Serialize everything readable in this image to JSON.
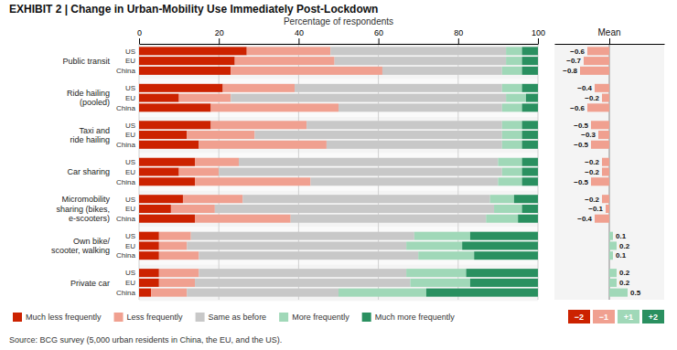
{
  "chart_data": [
    {
      "type": "bar",
      "orientation": "horizontal",
      "stacked": true,
      "title": "EXHIBIT 2 | Change in Urban-Mobility Use Immediately Post-Lockdown",
      "xlabel": "Percentage of respondents",
      "categories": [
        "Public transit",
        "Ride hailing\n(pooled)",
        "Taxi and\nride hailing",
        "Car sharing",
        "Micromobility\nsharing (bikes,\ne-scooters)",
        "Own bike/\nscooter, walking",
        "Private car"
      ],
      "subcategories": [
        "US",
        "EU",
        "China"
      ],
      "series": [
        {
          "name": "Much less frequently",
          "color": "#cc2200",
          "values": [
            [
              27,
              24,
              23
            ],
            [
              21,
              10,
              18
            ],
            [
              18,
              12,
              15
            ],
            [
              14,
              10,
              14
            ],
            [
              11,
              8,
              14
            ],
            [
              5,
              5,
              5
            ],
            [
              5,
              5,
              3
            ]
          ]
        },
        {
          "name": "Less frequently",
          "color": "#f0a090",
          "values": [
            [
              21,
              25,
              38
            ],
            [
              18,
              13,
              32
            ],
            [
              24,
              17,
              32
            ],
            [
              11,
              10,
              29
            ],
            [
              15,
              11,
              24
            ],
            [
              8,
              7,
              10
            ],
            [
              10,
              9,
              9
            ]
          ]
        },
        {
          "name": "Same as before",
          "color": "#c8c8c8",
          "values": [
            [
              44,
              43,
              30
            ],
            [
              52,
              69,
              41
            ],
            [
              49,
              62,
              44
            ],
            [
              65,
              71,
              47
            ],
            [
              62,
              70,
              49
            ],
            [
              56,
              55,
              55
            ],
            [
              52,
              54,
              38
            ]
          ]
        },
        {
          "name": "More frequently",
          "color": "#a0d8b8",
          "values": [
            [
              4,
              4,
              5
            ],
            [
              5,
              5,
              5
            ],
            [
              5,
              5,
              5
            ],
            [
              6,
              5,
              6
            ],
            [
              6,
              7,
              8
            ],
            [
              14,
              14,
              14
            ],
            [
              15,
              15,
              22
            ]
          ]
        },
        {
          "name": "Much more frequently",
          "color": "#2a9060",
          "values": [
            [
              4,
              4,
              4
            ],
            [
              4,
              3,
              4
            ],
            [
              4,
              4,
              4
            ],
            [
              4,
              4,
              4
            ],
            [
              6,
              4,
              5
            ],
            [
              17,
              19,
              16
            ],
            [
              18,
              17,
              28
            ]
          ]
        }
      ],
      "xlim": [
        0,
        100
      ],
      "xticks": [
        0,
        20,
        40,
        60,
        80,
        100
      ],
      "grid": true,
      "legend": "bottom",
      "annotations": [
        "Source: BCG survey (5,000 urban residents in China, the EU, and the US)."
      ]
    },
    {
      "type": "bar",
      "orientation": "horizontal",
      "title": "Mean",
      "values": [
        [
          -0.6,
          -0.7,
          -0.8
        ],
        [
          -0.4,
          -0.2,
          -0.6
        ],
        [
          -0.5,
          -0.3,
          -0.5
        ],
        [
          -0.2,
          -0.2,
          -0.5
        ],
        [
          -0.2,
          -0.1,
          -0.4
        ],
        [
          0.1,
          0.2,
          0.1
        ],
        [
          0.2,
          0.2,
          0.5
        ]
      ],
      "value_labels": [
        [
          "−0.6",
          "−0.7",
          "−0.8"
        ],
        [
          "−0.4",
          "−0.2",
          "−0.6"
        ],
        [
          "−0.5",
          "−0.3",
          "−0.5"
        ],
        [
          "−0.2",
          "−0.2",
          "−0.5"
        ],
        [
          "−0.2",
          "−0.1",
          "−0.4"
        ],
        [
          "0.1",
          "0.2",
          "0.1"
        ],
        [
          "0.2",
          "0.2",
          "0.5"
        ]
      ],
      "colors": [
        [
          "#f0a090",
          "#f0a090",
          "#f0a090"
        ],
        [
          "#f0a090",
          "#f0a090",
          "#f0a090"
        ],
        [
          "#f0a090",
          "#f0a090",
          "#f0a090"
        ],
        [
          "#f0a090",
          "#f0a090",
          "#f0a090"
        ],
        [
          "#f0a090",
          "#f0a090",
          "#f0a090"
        ],
        [
          "#a0d8b8",
          "#a0d8b8",
          "#a0d8b8"
        ],
        [
          "#a0d8b8",
          "#a0d8b8",
          "#a0d8b8"
        ]
      ],
      "xlim": [
        -1.5,
        1.5
      ],
      "xticks": [
        0
      ],
      "grid": true,
      "tick_labels": false,
      "data_labels": true,
      "scale": [
        {
          "label": "−2",
          "color": "#cc2200"
        },
        {
          "label": "−1",
          "color": "#f0a090"
        },
        {
          "label": "+1",
          "color": "#a0d8b8"
        },
        {
          "label": "+2",
          "color": "#2a9060"
        }
      ]
    }
  ]
}
